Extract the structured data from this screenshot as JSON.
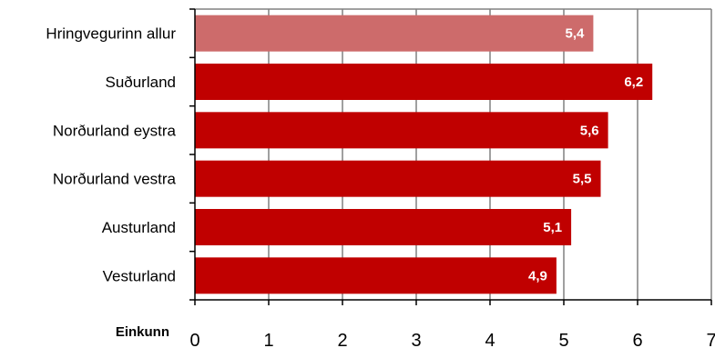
{
  "chart_data": {
    "type": "bar",
    "orientation": "horizontal",
    "title": "",
    "xlabel": "Einkunn",
    "ylabel": "",
    "categories": [
      "Hringvegurinn allur",
      "Suðurland",
      "Norðurland eystra",
      "Norðurland vestra",
      "Austurland",
      "Vesturland"
    ],
    "values": [
      5.4,
      6.2,
      5.6,
      5.5,
      5.1,
      4.9
    ],
    "value_labels": [
      "5,4",
      "6,2",
      "5,6",
      "5,5",
      "5,1",
      "4,9"
    ],
    "xlim": [
      0,
      7
    ],
    "xticks": [
      0,
      1,
      2,
      3,
      4,
      5,
      6,
      7
    ],
    "xtick_labels": [
      "0",
      "1",
      "2",
      "3",
      "4",
      "5",
      "6",
      "7"
    ],
    "grid": "vertical",
    "colors": {
      "highlight_bar": "#cd6b6b",
      "bar": "#c00000",
      "gridline": "#808080",
      "axis": "#000000"
    },
    "highlighted_index": 0
  }
}
